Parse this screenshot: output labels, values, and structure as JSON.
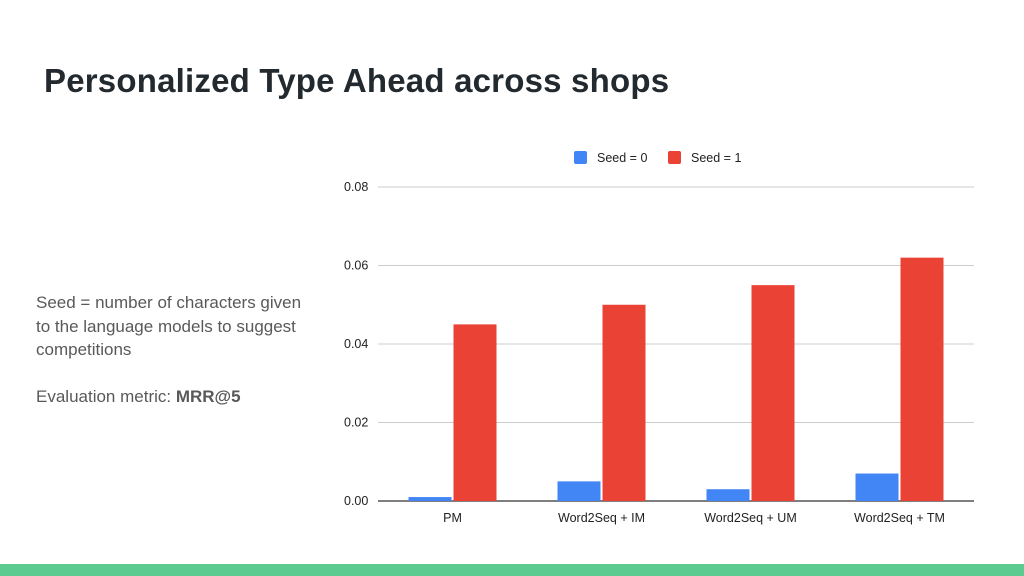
{
  "slide": {
    "title": "Personalized Type Ahead across shops",
    "notes": {
      "seed_description": "Seed = number of characters given to the language models to suggest competitions",
      "metric_label": "Evaluation metric: ",
      "metric_value": "MRR@5"
    }
  },
  "colors": {
    "seed0": "#4285f4",
    "seed1": "#ea4335",
    "footer": "#5ccb8f"
  },
  "chart_data": {
    "type": "bar",
    "title": "",
    "xlabel": "",
    "ylabel": "",
    "categories": [
      "PM",
      "Word2Seq + IM",
      "Word2Seq + UM",
      "Word2Seq + TM"
    ],
    "series": [
      {
        "name": "Seed = 0",
        "values": [
          0.001,
          0.005,
          0.003,
          0.007
        ],
        "color": "#4285f4"
      },
      {
        "name": "Seed = 1",
        "values": [
          0.045,
          0.05,
          0.055,
          0.062
        ],
        "color": "#ea4335"
      }
    ],
    "ylim": [
      0,
      0.08
    ],
    "yticks": [
      "0.00",
      "0.02",
      "0.04",
      "0.06",
      "0.08"
    ],
    "grid": true,
    "legend": "top-center"
  }
}
